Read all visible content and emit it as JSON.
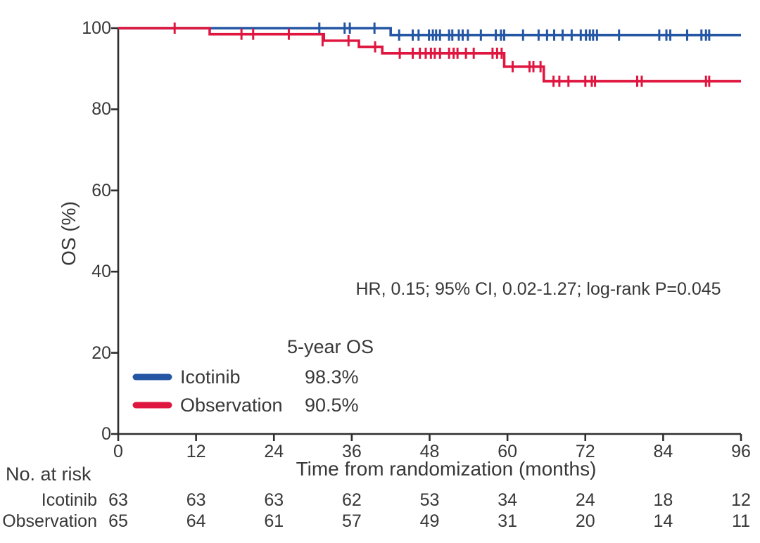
{
  "chart_data": {
    "type": "line",
    "subtype": "kaplan-meier-step",
    "title": "",
    "xlabel": "Time from randomization (months)",
    "ylabel": "OS (%)",
    "xlim": [
      0,
      96
    ],
    "ylim": [
      0,
      100
    ],
    "xticks": [
      0,
      12,
      24,
      36,
      48,
      60,
      72,
      84,
      96
    ],
    "yticks": [
      0,
      20,
      40,
      60,
      80,
      100
    ],
    "grid": false,
    "annotation": "HR, 0.15; 95% CI, 0.02-1.27; log-rank P=0.045",
    "legend_header": "5-year OS",
    "legend_position": "lower-left",
    "axis_color": "#2e2e2e",
    "series": [
      {
        "name": "Icotinib",
        "color": "#2456a4",
        "five_year_os": "98.3%",
        "steps": [
          [
            0,
            100
          ],
          [
            42,
            98.3
          ]
        ],
        "end_x": 96,
        "censors": [
          [
            31,
            100
          ],
          [
            34.9,
            100
          ],
          [
            35.7,
            100
          ],
          [
            39.5,
            100
          ],
          [
            43.3,
            98.3
          ],
          [
            45.4,
            98.3
          ],
          [
            46.3,
            98.3
          ],
          [
            47.9,
            98.3
          ],
          [
            48.5,
            98.3
          ],
          [
            49.0,
            98.3
          ],
          [
            49.6,
            98.3
          ],
          [
            51.0,
            98.3
          ],
          [
            51.5,
            98.3
          ],
          [
            52.5,
            98.3
          ],
          [
            53.1,
            98.3
          ],
          [
            53.9,
            98.3
          ],
          [
            55.9,
            98.3
          ],
          [
            58.2,
            98.3
          ],
          [
            59.0,
            98.3
          ],
          [
            59.5,
            98.3
          ],
          [
            62.4,
            98.3
          ],
          [
            64.8,
            98.3
          ],
          [
            66.1,
            98.3
          ],
          [
            67.2,
            98.3
          ],
          [
            68.5,
            98.3
          ],
          [
            69.9,
            98.3
          ],
          [
            71.3,
            98.3
          ],
          [
            72.1,
            98.3
          ],
          [
            72.7,
            98.3
          ],
          [
            73.2,
            98.3
          ],
          [
            73.8,
            98.3
          ],
          [
            77.2,
            98.3
          ],
          [
            83.4,
            98.3
          ],
          [
            84.5,
            98.3
          ],
          [
            85.1,
            98.3
          ],
          [
            87.7,
            98.3
          ],
          [
            89.9,
            98.3
          ],
          [
            90.6,
            98.3
          ],
          [
            91.1,
            98.3
          ]
        ]
      },
      {
        "name": "Observation",
        "color": "#df1740",
        "five_year_os": "90.5%",
        "steps": [
          [
            0,
            100
          ],
          [
            14.1,
            98.5
          ],
          [
            31.7,
            96.9
          ],
          [
            37.1,
            95.4
          ],
          [
            40.7,
            93.8
          ],
          [
            59.5,
            90.5
          ],
          [
            65.6,
            86.9
          ]
        ],
        "end_x": 96,
        "censors": [
          [
            8.7,
            100
          ],
          [
            19.0,
            98.5
          ],
          [
            20.8,
            98.5
          ],
          [
            26.3,
            98.5
          ],
          [
            31.5,
            96.9
          ],
          [
            35.5,
            96.9
          ],
          [
            39.6,
            95.4
          ],
          [
            43.4,
            93.8
          ],
          [
            45.4,
            93.8
          ],
          [
            46.5,
            93.8
          ],
          [
            47.4,
            93.8
          ],
          [
            48.2,
            93.8
          ],
          [
            48.8,
            93.8
          ],
          [
            49.6,
            93.8
          ],
          [
            51.0,
            93.8
          ],
          [
            51.7,
            93.8
          ],
          [
            52.3,
            93.8
          ],
          [
            53.6,
            93.8
          ],
          [
            54.8,
            93.8
          ],
          [
            57.7,
            93.8
          ],
          [
            58.4,
            93.8
          ],
          [
            59.1,
            93.8
          ],
          [
            60.8,
            90.5
          ],
          [
            63.4,
            90.5
          ],
          [
            64.0,
            90.5
          ],
          [
            65.1,
            90.5
          ],
          [
            67.1,
            86.9
          ],
          [
            68.0,
            86.9
          ],
          [
            69.4,
            86.9
          ],
          [
            72.0,
            86.9
          ],
          [
            73.0,
            86.9
          ],
          [
            73.5,
            86.9
          ],
          [
            80.0,
            86.9
          ],
          [
            80.7,
            86.9
          ],
          [
            90.6,
            86.9
          ],
          [
            91.1,
            86.9
          ]
        ]
      }
    ],
    "risk_table": {
      "title": "No. at risk",
      "times": [
        0,
        12,
        24,
        36,
        48,
        60,
        72,
        84,
        96
      ],
      "rows": [
        {
          "name": "Icotinib",
          "values": [
            63,
            63,
            63,
            62,
            53,
            34,
            24,
            18,
            12
          ]
        },
        {
          "name": "Observation",
          "values": [
            65,
            64,
            61,
            57,
            49,
            31,
            20,
            14,
            11
          ]
        }
      ]
    }
  }
}
